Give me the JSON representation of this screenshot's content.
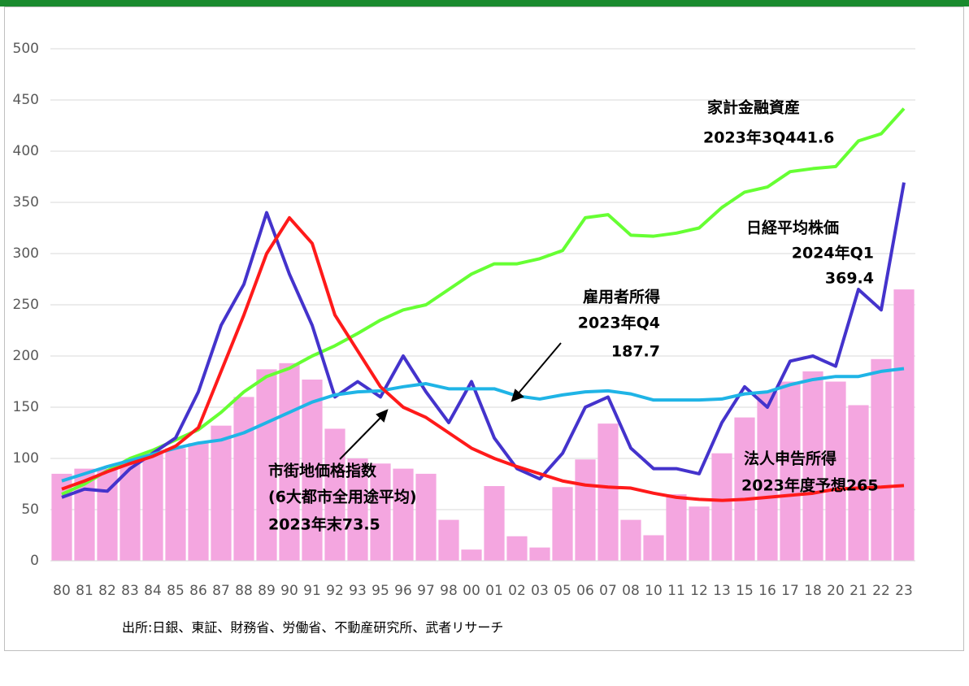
{
  "chart_data": {
    "type": "bar_line",
    "categories": [
      "80",
      "81",
      "82",
      "83",
      "84",
      "85",
      "86",
      "87",
      "88",
      "89",
      "90",
      "91",
      "92",
      "93",
      "95",
      "96",
      "97",
      "98",
      "00",
      "01",
      "02",
      "03",
      "05",
      "06",
      "07",
      "08",
      "10",
      "11",
      "12",
      "13",
      "15",
      "16",
      "17",
      "18",
      "20",
      "21",
      "22",
      "23"
    ],
    "ylim": [
      0,
      500
    ],
    "yticks": [
      0,
      50,
      100,
      150,
      200,
      250,
      300,
      350,
      400,
      450,
      500
    ],
    "bars": {
      "color": "#f4a6e0",
      "values": [
        85,
        90,
        90,
        95,
        105,
        110,
        115,
        132,
        160,
        187,
        193,
        177,
        129,
        100,
        95,
        90,
        85,
        40,
        11,
        73,
        24,
        13,
        72,
        99,
        134,
        40,
        25,
        65,
        53,
        105,
        140,
        165,
        175,
        185,
        175,
        152,
        197,
        265
      ]
    },
    "series": [
      {
        "color": "#66ff33",
        "values": [
          65,
          75,
          88,
          100,
          108,
          118,
          128,
          145,
          165,
          180,
          188,
          200,
          210,
          222,
          235,
          245,
          250,
          265,
          280,
          290,
          290,
          295,
          303,
          335,
          338,
          318,
          317,
          320,
          325,
          345,
          360,
          365,
          380,
          383,
          385,
          410,
          417,
          441.6
        ]
      },
      {
        "color": "#4433cc",
        "values": [
          62,
          70,
          68,
          90,
          105,
          120,
          165,
          230,
          270,
          340,
          280,
          230,
          160,
          175,
          160,
          200,
          165,
          135,
          175,
          120,
          90,
          80,
          105,
          150,
          160,
          110,
          90,
          90,
          85,
          135,
          170,
          150,
          195,
          200,
          190,
          265,
          245,
          369.4
        ]
      },
      {
        "color": "#1fb4e6",
        "values": [
          78,
          85,
          92,
          98,
          104,
          110,
          115,
          118,
          125,
          135,
          145,
          155,
          162,
          165,
          166,
          170,
          173,
          168,
          168,
          168,
          161,
          158,
          162,
          165,
          166,
          163,
          157,
          157,
          157,
          158,
          163,
          165,
          172,
          177,
          180,
          180,
          185,
          187.7
        ]
      },
      {
        "color": "#ff1a1a",
        "values": [
          70,
          78,
          87,
          95,
          102,
          112,
          130,
          185,
          240,
          300,
          335,
          310,
          240,
          205,
          170,
          150,
          140,
          125,
          110,
          100,
          92,
          85,
          78,
          74,
          72,
          71,
          66,
          62,
          60,
          59,
          60,
          62,
          64,
          66,
          70,
          71,
          72,
          73.5
        ]
      }
    ],
    "annotations": [
      "家計金融資産",
      "2023年3Q441.6",
      "日経平均株価",
      "2024年Q1",
      "369.4",
      "雇用者所得",
      "2023年Q4",
      "187.7",
      "市街地価格指数",
      "(6大都市全用途平均)",
      "2023年末73.5",
      "法人申告所得",
      "2023年度予想265"
    ],
    "source": "出所:日銀、東証、財務省、労働省、不動産研究所、武者リサーチ"
  }
}
